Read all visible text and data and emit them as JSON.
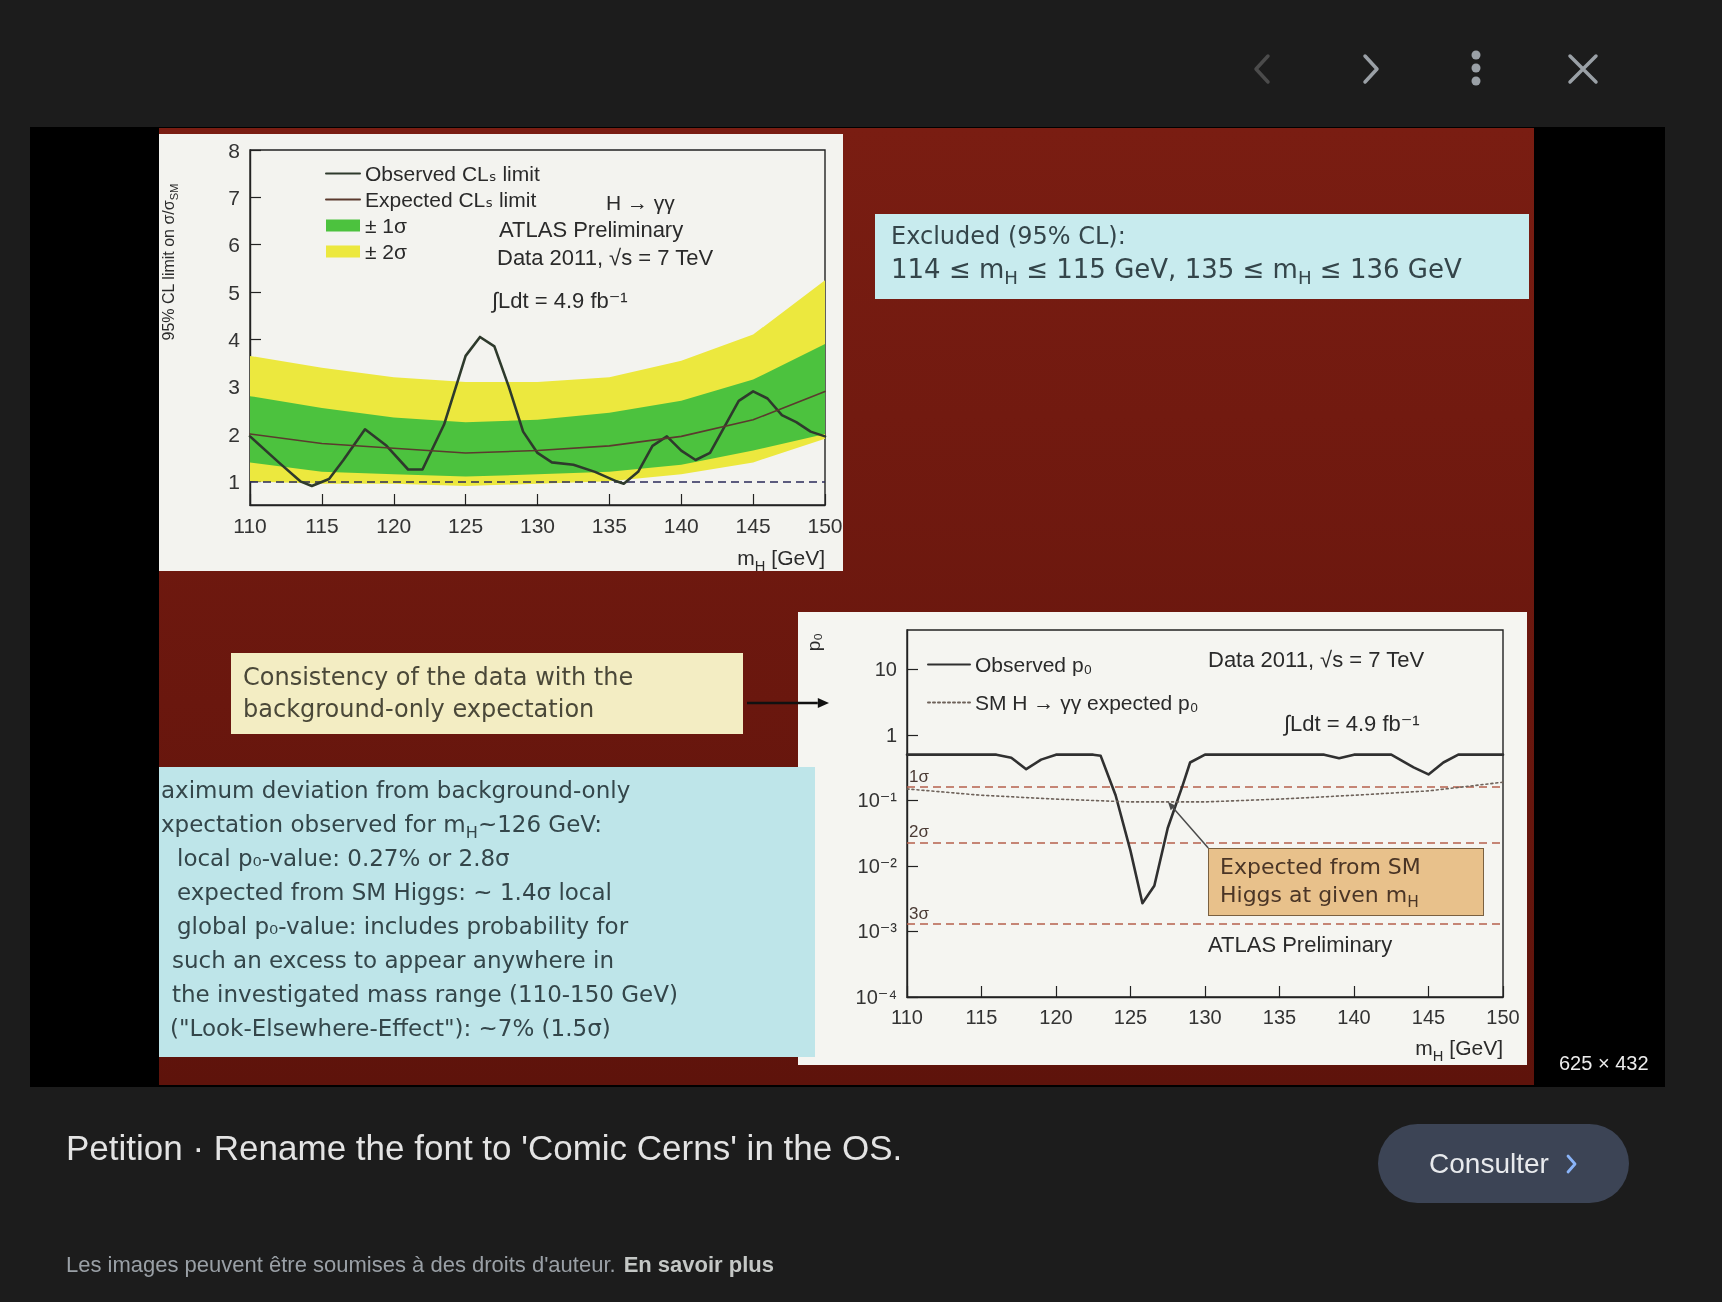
{
  "chart_data": [
    {
      "type": "line",
      "xlabel": "m$_{H}$ [GeV]",
      "ylabel": "95% CL limit on σ/σ$_{SM}$",
      "legend": "top left",
      "annotations": [
        "H → γγ",
        "ATLAS Preliminary",
        "Data 2011, √s = 7 TeV",
        "∫Ldt = 4.9 fb⁻¹",
        "Excluded (95% CL):",
        "114 ≤ m$_{H}$ ≤ 115 GeV, 135 ≤ m$_{H}$ ≤ 136 GeV"
      ],
      "x": [
        110,
        115,
        120,
        125,
        130,
        135,
        140,
        145,
        150
      ],
      "series": [
        {
          "name": "Observed CLₛ limit",
          "color": "#2e3a2c",
          "x": [
            110,
            112,
            113.5,
            114.3,
            115.5,
            116.5,
            118,
            119.5,
            121,
            122,
            123.5,
            125,
            126,
            127,
            128,
            129,
            130,
            131,
            132.5,
            134,
            135.5,
            136,
            137,
            138,
            139,
            140,
            141,
            142,
            143,
            144,
            145,
            146,
            147,
            148,
            149,
            150
          ],
          "values": [
            1.95,
            1.4,
            1.0,
            0.9,
            1.05,
            1.45,
            2.1,
            1.75,
            1.25,
            1.25,
            2.2,
            3.65,
            4.05,
            3.85,
            3.0,
            2.05,
            1.6,
            1.4,
            1.35,
            1.2,
            1.0,
            0.95,
            1.2,
            1.75,
            1.95,
            1.65,
            1.45,
            1.6,
            2.15,
            2.7,
            2.9,
            2.75,
            2.4,
            2.25,
            2.05,
            1.95
          ]
        },
        {
          "name": "Expected CLₛ limit",
          "color": "#5b3a2e",
          "values": [
            2.0,
            1.8,
            1.7,
            1.6,
            1.65,
            1.75,
            1.95,
            2.3,
            2.9
          ]
        },
        {
          "name": "± 1σ",
          "type": "area",
          "color": "#4cc23e",
          "values": [
            null,
            null,
            null,
            null,
            null,
            null,
            null,
            null,
            null
          ],
          "lower": [
            1.4,
            1.2,
            1.15,
            1.1,
            1.15,
            1.2,
            1.35,
            1.65,
            2.0
          ],
          "upper": [
            2.8,
            2.55,
            2.35,
            2.25,
            2.3,
            2.45,
            2.7,
            3.15,
            3.9
          ]
        },
        {
          "name": "± 2σ",
          "type": "area",
          "color": "#ece83e",
          "values": [
            null,
            null,
            null,
            null,
            null,
            null,
            null,
            null,
            null
          ],
          "lower": [
            1.0,
            0.95,
            0.95,
            0.9,
            0.95,
            1.0,
            1.15,
            1.4,
            1.9
          ],
          "upper": [
            3.65,
            3.4,
            3.2,
            3.1,
            3.1,
            3.2,
            3.55,
            4.1,
            5.25
          ]
        }
      ],
      "xlim": [
        110,
        150
      ],
      "xticks": [
        110,
        115,
        120,
        125,
        130,
        135,
        140,
        145,
        150
      ],
      "ylim": [
        0.5,
        8
      ],
      "yticks": [
        1,
        2,
        3,
        4,
        5,
        6,
        7,
        8
      ],
      "ref_lines": [
        {
          "axis": "y",
          "value": 1,
          "color": "#2a2a5a",
          "line_style": "dashed"
        }
      ]
    },
    {
      "type": "line",
      "xlabel": "m$_{H}$ [GeV]",
      "ylabel": "p₀",
      "legend": "top left",
      "log": "y",
      "annotations": [
        "Data 2011, √s = 7 TeV",
        "∫Ldt = 4.9 fb⁻¹",
        "ATLAS Preliminary",
        {
          "text": "Expected from SM Higgs at given m$_{H}$",
          "x": 127.5,
          "y": 0.095
        },
        "Consistency of the data with the background-only expectation",
        "aximum deviation from background-only",
        "xpectation observed for m$_{H}$~126 GeV:",
        "local p₀-value: 0.27% or 2.8σ",
        "expected from SM Higgs: ~ 1.4σ local",
        "global p₀-value: includes probability for",
        "such an excess to appear anywhere in",
        "the investigated mass range (110-150 GeV)",
        "(\"Look-Elsewhere-Effect\"): ~7% (1.5σ)"
      ],
      "x": [
        110,
        115,
        120,
        125,
        130,
        135,
        140,
        145,
        150
      ],
      "series": [
        {
          "name": "Observed p₀",
          "color": "#303030",
          "x": [
            110,
            116,
            117,
            118,
            119,
            120,
            122.5,
            123,
            124,
            125,
            125.8,
            126.6,
            127.5,
            128.5,
            129,
            130,
            138,
            139,
            140,
            142.5,
            144,
            145,
            146,
            147,
            150
          ],
          "values": [
            0.5,
            0.5,
            0.45,
            0.3,
            0.42,
            0.5,
            0.5,
            0.48,
            0.12,
            0.017,
            0.0027,
            0.005,
            0.038,
            0.17,
            0.38,
            0.5,
            0.5,
            0.44,
            0.5,
            0.5,
            0.32,
            0.25,
            0.38,
            0.5,
            0.5
          ]
        },
        {
          "name": "SM H → γγ expected p₀",
          "color": "#6e625a",
          "line_style": "dotted",
          "values": [
            0.15,
            0.12,
            0.105,
            0.095,
            0.095,
            0.105,
            0.12,
            0.14,
            0.19
          ]
        }
      ],
      "xlim": [
        110,
        150
      ],
      "xticks": [
        110,
        115,
        120,
        125,
        130,
        135,
        140,
        145,
        150
      ],
      "ylim": [
        0.0001,
        40
      ],
      "yticks": [
        {
          "value": 0.0001,
          "label": "10⁻⁴"
        },
        {
          "value": 0.001,
          "label": "10⁻³"
        },
        {
          "value": 0.01,
          "label": "10⁻²"
        },
        {
          "value": 0.1,
          "label": "10⁻¹"
        },
        1,
        10
      ],
      "ref_lines": [
        {
          "axis": "y",
          "value": 0.16,
          "label": "1σ",
          "color": "#b5604c",
          "line_style": "dashed"
        },
        {
          "axis": "y",
          "value": 0.023,
          "label": "2σ",
          "color": "#b5604c",
          "line_style": "dashed"
        },
        {
          "axis": "y",
          "value": 0.0013,
          "label": "3σ",
          "color": "#b5604c",
          "line_style": "dashed"
        }
      ]
    },
    {
      "type": "other",
      "title": "Petition · Rename the font to 'Comic Cerns' in the OS.",
      "annotations": [
        "625 × 432",
        "Consulter",
        "Les images peuvent être soumises à des droits d'auteur.",
        "En savoir plus"
      ]
    }
  ]
}
